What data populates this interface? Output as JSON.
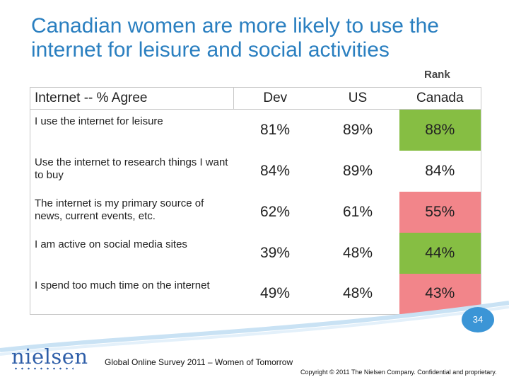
{
  "slide": {
    "title": "Canadian women are more likely to use the internet for leisure and social activities",
    "rank_label": "Rank",
    "page_number": "34",
    "source": "Global Online Survey 2011 – Women of Tomorrow",
    "copyright": "Copyright © 2011 The Nielsen Company. Confidential and proprietary.",
    "logo_text": "nielsen"
  },
  "table": {
    "row_header": "Internet -- % Agree",
    "columns": [
      "Dev",
      "US",
      "Canada"
    ],
    "rows": [
      {
        "label": "I use the internet for leisure",
        "dev": "81%",
        "us": "89%",
        "canada": "88%",
        "canada_status": "green"
      },
      {
        "label": "Use the internet to research things I want to buy",
        "dev": "84%",
        "us": "89%",
        "canada": "84%",
        "canada_status": "none"
      },
      {
        "label": "The internet is my primary source of news, current events, etc.",
        "dev": "62%",
        "us": "61%",
        "canada": "55%",
        "canada_status": "red"
      },
      {
        "label": "I am active on social media sites",
        "dev": "39%",
        "us": "48%",
        "canada": "44%",
        "canada_status": "green"
      },
      {
        "label": "I spend too much time on the internet",
        "dev": "49%",
        "us": "48%",
        "canada": "43%",
        "canada_status": "red"
      }
    ]
  },
  "colors": {
    "title": "#2a7fc0",
    "green": "#86be43",
    "red": "#f2858a",
    "brand_blue": "#2e5ea8"
  }
}
